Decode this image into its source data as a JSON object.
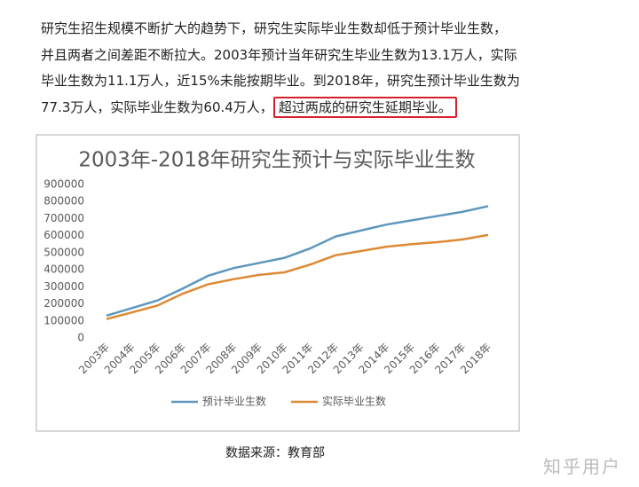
{
  "paragraph": {
    "lines": [
      "研究生招生规模不断扩大的趋势下，研究生实际毕业生数却低于预计毕业生数，",
      "并且两者之间差距不断拉大。2003年预计当年研究生毕业生数为13.1万人，实际",
      "毕业生数为11.1万人，近15%未能按期毕业。到2018年，研究生预计毕业生数为"
    ],
    "last_line": "77.3万人，实际毕业生数为60.4万人，",
    "highlight": "超过两成的研究生延期毕业。"
  },
  "chart_data": {
    "type": "line",
    "title": "2003年-2018年研究生预计与实际毕业生数",
    "categories": [
      "2003年",
      "2004年",
      "2005年",
      "2006年",
      "2007年",
      "2008年",
      "2009年",
      "2010年",
      "2011年",
      "2012年",
      "2013年",
      "2014年",
      "2015年",
      "2016年",
      "2017年",
      "2018年"
    ],
    "series": [
      {
        "name": "预计毕业生数",
        "color": "#5e97bd",
        "values": [
          131000,
          175000,
          220000,
          290000,
          365000,
          410000,
          440000,
          470000,
          525000,
          595000,
          630000,
          665000,
          690000,
          715000,
          740000,
          773000
        ]
      },
      {
        "name": "实际毕业生数",
        "color": "#dc8a34",
        "values": [
          111000,
          150000,
          190000,
          260000,
          315000,
          345000,
          370000,
          385000,
          430000,
          485000,
          510000,
          535000,
          550000,
          562000,
          578000,
          604000
        ]
      }
    ],
    "ylim": [
      0,
      900000
    ],
    "yticks": [
      0,
      100000,
      200000,
      300000,
      400000,
      500000,
      600000,
      700000,
      800000,
      900000
    ],
    "grid": false,
    "legend": "bottom"
  },
  "caption": "数据来源：教育部",
  "watermark": "知乎用户"
}
